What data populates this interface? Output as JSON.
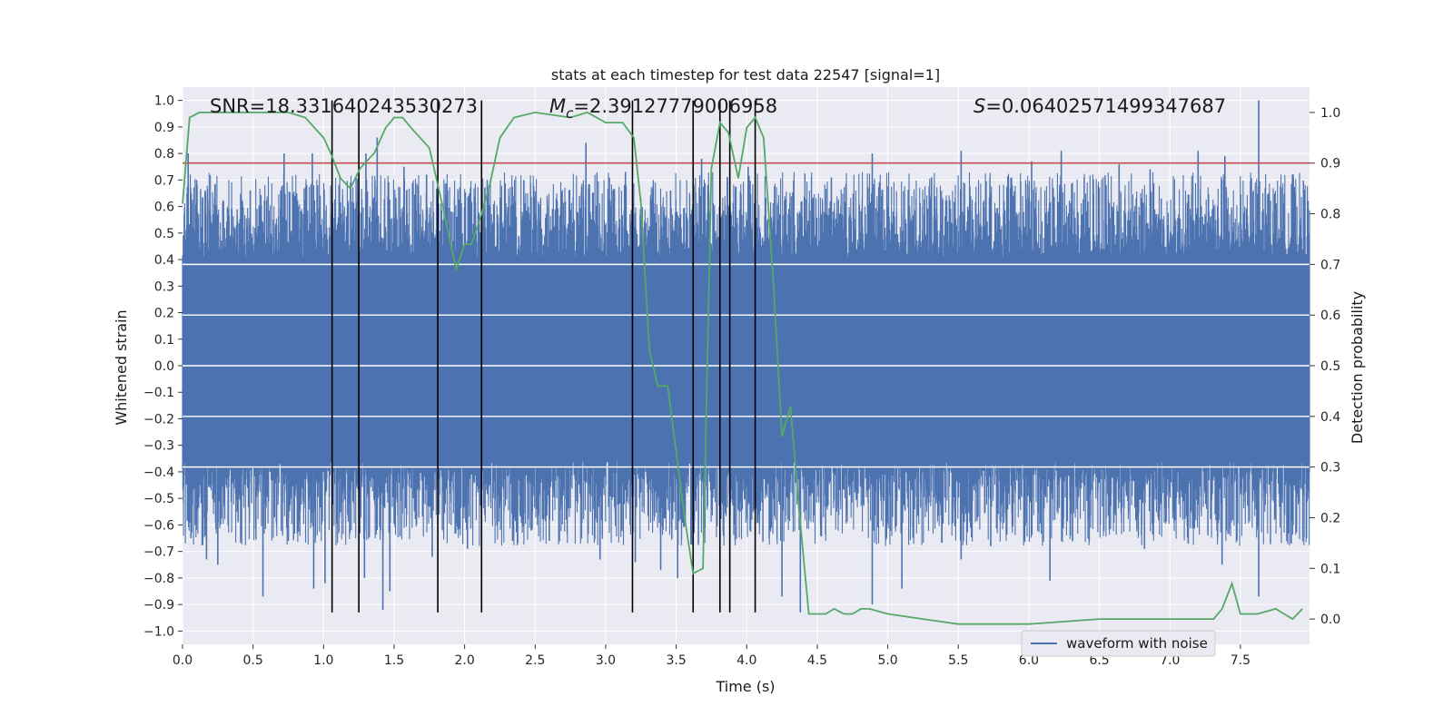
{
  "chart_data": {
    "type": "line",
    "title": "stats at each timestep for test data 22547 [signal=1]",
    "xlabel": "Time (s)",
    "ylabel": "Whitened strain",
    "y2label": "Detection probability",
    "xlim": [
      0.0,
      7.99
    ],
    "ylim": [
      -1.05,
      1.05
    ],
    "y2lim": [
      -0.05,
      1.05
    ],
    "x_ticks": [
      "0.0",
      "0.5",
      "1.0",
      "1.5",
      "2.0",
      "2.5",
      "3.0",
      "3.5",
      "4.0",
      "4.5",
      "5.0",
      "5.5",
      "6.0",
      "6.5",
      "7.0",
      "7.5"
    ],
    "y_ticks": [
      "1.0",
      "0.9",
      "0.8",
      "0.7",
      "0.6",
      "0.5",
      "0.4",
      "0.3",
      "0.2",
      "0.1",
      "0.0",
      "−0.1",
      "−0.2",
      "−0.3",
      "−0.4",
      "−0.5",
      "−0.6",
      "−0.7",
      "−0.8",
      "−0.9",
      "−1.0"
    ],
    "y2_ticks": [
      "1.0",
      "0.9",
      "0.8",
      "0.7",
      "0.6",
      "0.5",
      "0.4",
      "0.3",
      "0.2",
      "0.1",
      "0.0"
    ],
    "grid": true,
    "legend": {
      "placement": "lower-right",
      "entries": [
        "waveform with noise"
      ]
    },
    "annotations": {
      "snr": "SNR=18.331640243530273",
      "mc_symbol": "M",
      "mc_sub": "c",
      "mc_value": "=2.39127779006958",
      "s_symbol": "S",
      "s_value": "=0.06402571499347687"
    },
    "threshold": {
      "y2": 0.9,
      "color": "#c44e52"
    },
    "event_lines_x": [
      1.06,
      1.25,
      1.81,
      2.12,
      3.19,
      3.62,
      3.81,
      3.88,
      4.06
    ],
    "event_lines_y_range": [
      -0.93,
      1.0
    ],
    "waveform": {
      "name": "waveform with noise",
      "color": "#4c72b0",
      "core_band": [
        -0.36,
        0.41
      ],
      "spikes": [
        [
          0.04,
          0.8
        ],
        [
          0.1,
          0.7
        ],
        [
          0.16,
          0.66
        ],
        [
          0.29,
          0.62
        ],
        [
          0.48,
          0.66
        ],
        [
          0.55,
          0.6
        ],
        [
          0.72,
          0.8
        ],
        [
          0.92,
          0.8
        ],
        [
          1.25,
          0.71
        ],
        [
          1.3,
          0.8
        ],
        [
          1.38,
          0.86
        ],
        [
          1.57,
          0.75
        ],
        [
          1.73,
          0.72
        ],
        [
          2.16,
          0.7
        ],
        [
          2.42,
          0.7
        ],
        [
          2.86,
          0.84
        ],
        [
          3.14,
          0.73
        ],
        [
          3.46,
          0.66
        ],
        [
          3.68,
          0.78
        ],
        [
          4.01,
          0.75
        ],
        [
          4.6,
          0.71
        ],
        [
          4.89,
          0.8
        ],
        [
          5.31,
          0.71
        ],
        [
          5.52,
          0.81
        ],
        [
          6.02,
          0.77
        ],
        [
          6.23,
          0.81
        ],
        [
          6.64,
          0.76
        ],
        [
          6.86,
          0.74
        ],
        [
          7.2,
          0.81
        ],
        [
          7.39,
          0.79
        ],
        [
          7.63,
          1.0
        ],
        [
          7.79,
          0.67
        ],
        [
          0.06,
          -0.65
        ],
        [
          0.17,
          -0.73
        ],
        [
          0.25,
          -0.75
        ],
        [
          0.57,
          -0.87
        ],
        [
          0.75,
          -0.66
        ],
        [
          0.93,
          -0.84
        ],
        [
          1.01,
          -0.82
        ],
        [
          1.29,
          -0.8
        ],
        [
          1.42,
          -0.92
        ],
        [
          1.47,
          -0.85
        ],
        [
          1.77,
          -0.72
        ],
        [
          2.02,
          -0.69
        ],
        [
          2.34,
          -0.66
        ],
        [
          2.6,
          -0.66
        ],
        [
          2.96,
          -0.73
        ],
        [
          3.21,
          -0.74
        ],
        [
          3.39,
          -0.77
        ],
        [
          3.51,
          -0.8
        ],
        [
          4.25,
          -0.87
        ],
        [
          4.38,
          -0.93
        ],
        [
          4.89,
          -0.9
        ],
        [
          5.1,
          -0.84
        ],
        [
          5.52,
          -0.73
        ],
        [
          5.73,
          -0.68
        ],
        [
          6.15,
          -0.81
        ],
        [
          6.31,
          -0.66
        ],
        [
          6.82,
          -0.69
        ],
        [
          7.13,
          -0.67
        ],
        [
          7.37,
          -0.75
        ],
        [
          7.63,
          -0.87
        ],
        [
          7.86,
          -0.67
        ]
      ]
    },
    "probability": {
      "color": "#55a868",
      "x": [
        0.0,
        0.05,
        0.12,
        0.25,
        0.5,
        0.75,
        0.87,
        1.0,
        1.05,
        1.12,
        1.19,
        1.26,
        1.36,
        1.44,
        1.5,
        1.56,
        1.62,
        1.75,
        1.84,
        1.94,
        2.0,
        2.05,
        2.12,
        2.18,
        2.25,
        2.35,
        2.5,
        2.75,
        2.87,
        3.0,
        3.12,
        3.2,
        3.25,
        3.31,
        3.37,
        3.44,
        3.5,
        3.56,
        3.62,
        3.69,
        3.75,
        3.81,
        3.87,
        3.94,
        4.0,
        4.06,
        4.12,
        4.19,
        4.25,
        4.31,
        4.37,
        4.44,
        4.56,
        4.62,
        4.69,
        4.75,
        4.81,
        4.87,
        5.0,
        5.25,
        5.5,
        6.0,
        6.5,
        7.0,
        7.31,
        7.37,
        7.44,
        7.5,
        7.62,
        7.75,
        7.81,
        7.87,
        7.94
      ],
      "y": [
        0.82,
        0.99,
        1.0,
        1.0,
        1.0,
        1.0,
        0.99,
        0.95,
        0.92,
        0.87,
        0.85,
        0.89,
        0.92,
        0.97,
        0.99,
        0.99,
        0.97,
        0.93,
        0.82,
        0.69,
        0.74,
        0.74,
        0.8,
        0.86,
        0.95,
        0.99,
        1.0,
        0.99,
        1.0,
        0.98,
        0.98,
        0.95,
        0.82,
        0.53,
        0.46,
        0.46,
        0.33,
        0.2,
        0.09,
        0.1,
        0.89,
        0.98,
        0.96,
        0.87,
        0.97,
        0.99,
        0.95,
        0.66,
        0.36,
        0.42,
        0.22,
        0.01,
        0.01,
        0.02,
        0.01,
        0.01,
        0.02,
        0.02,
        0.01,
        0.0,
        -0.01,
        -0.01,
        0.0,
        0.0,
        0.0,
        0.02,
        0.07,
        0.01,
        0.01,
        0.02,
        0.01,
        0.0,
        0.02
      ]
    }
  }
}
